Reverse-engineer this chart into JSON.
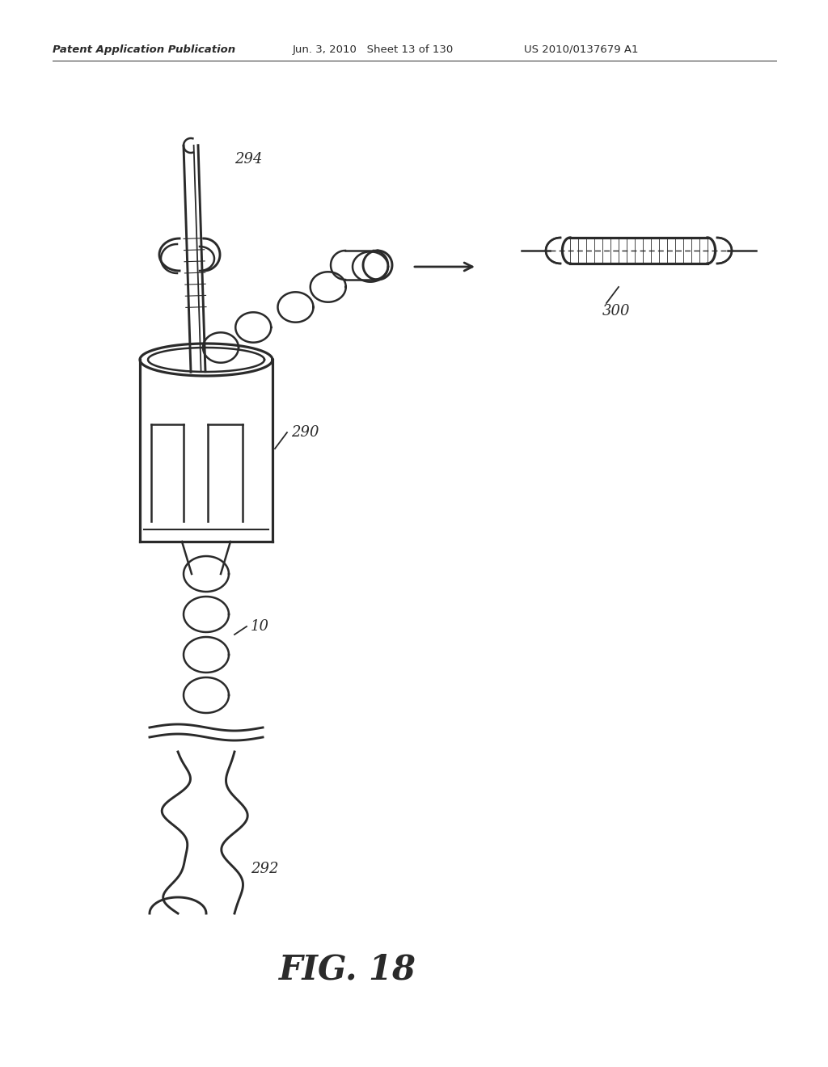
{
  "title": "FIG. 18",
  "header_left": "Patent Application Publication",
  "header_mid": "Jun. 3, 2010   Sheet 13 of 130",
  "header_right": "US 2010/0137679 A1",
  "label_294": "294",
  "label_290": "290",
  "label_10": "10",
  "label_292": "292",
  "label_300": "300",
  "bg_color": "#ffffff",
  "line_color": "#2a2a2a",
  "lw": 1.8
}
